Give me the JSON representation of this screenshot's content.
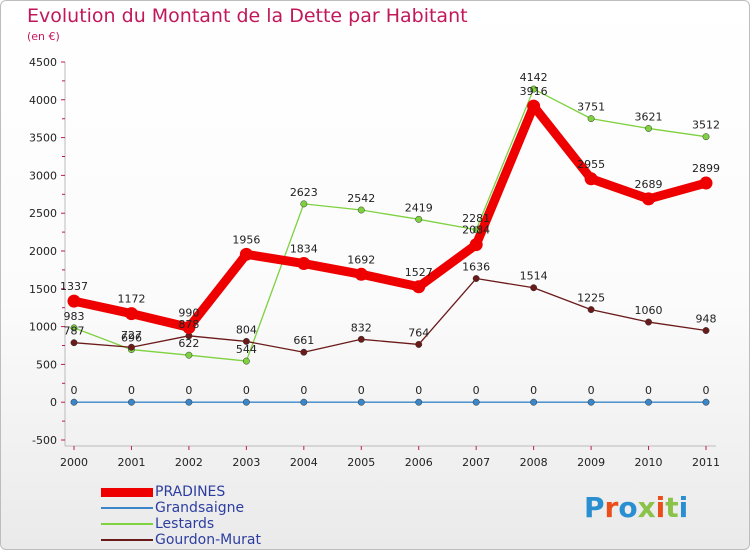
{
  "header": {
    "title": "Evolution du Montant de la Dette par Habitant",
    "subtitle": "(en €)"
  },
  "logo": {
    "text": "Proxiti",
    "letter_colors": [
      "#2a8fd0",
      "#e94e1b",
      "#2a8fd0",
      "#8bc34a",
      "#e94e1b",
      "#8bc34a",
      "#2a8fd0"
    ]
  },
  "chart_data": {
    "type": "line",
    "title": "Evolution du Montant de la Dette par Habitant",
    "subtitle": "(en €)",
    "xlabel": "",
    "ylabel": "",
    "x": [
      "2000",
      "2001",
      "2002",
      "2003",
      "2004",
      "2005",
      "2006",
      "2007",
      "2008",
      "2009",
      "2010",
      "2011"
    ],
    "ylim": [
      -500,
      4500
    ],
    "yticks": [
      -500,
      0,
      500,
      1000,
      1500,
      2000,
      2500,
      3000,
      3500,
      4000,
      4500
    ],
    "grid": false,
    "legend_position": "bottom-left",
    "series": [
      {
        "name": "PRADINES",
        "color": "#ee0000",
        "values": [
          1337,
          1172,
          990,
          1956,
          1834,
          1692,
          1527,
          2084,
          3916,
          2955,
          2689,
          2899
        ]
      },
      {
        "name": "Grandsaigne",
        "color": "#3a86c8",
        "values": [
          0,
          0,
          0,
          0,
          0,
          0,
          0,
          0,
          0,
          0,
          0,
          0
        ]
      },
      {
        "name": "Lestards",
        "color": "#7ed13f",
        "values": [
          983,
          696,
          622,
          544,
          2623,
          2542,
          2419,
          2281,
          4142,
          3751,
          3621,
          3512
        ]
      },
      {
        "name": "Gourdon-Murat",
        "color": "#6b1a1a",
        "values": [
          787,
          727,
          878,
          804,
          661,
          832,
          764,
          1636,
          1514,
          1225,
          1060,
          948
        ]
      }
    ]
  }
}
